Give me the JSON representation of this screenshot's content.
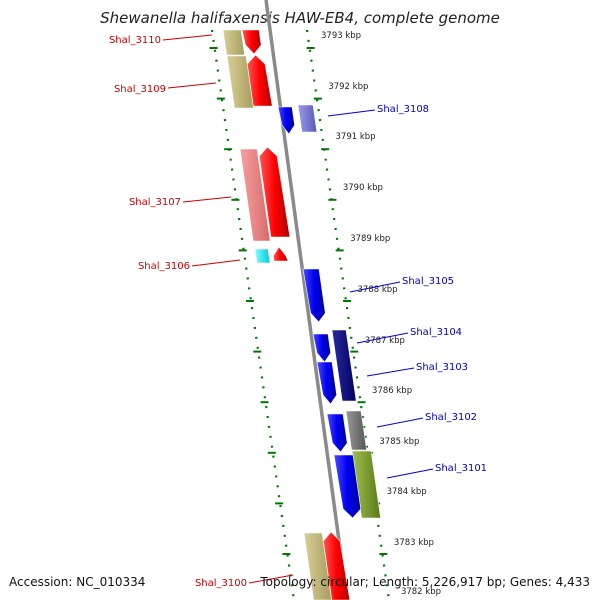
{
  "title": "Shewanella halifaxensis HAW-EB4, complete genome",
  "footer": {
    "accession": "Accession: NC_010334",
    "summary": "Topology: circular; Length: 5,226,917 bp; Genes: 4,433"
  },
  "colors": {
    "plus_label": "#cc0000",
    "minus_label": "#0000cc",
    "tick": "#007700",
    "backbone": "#888888"
  },
  "scale_labels": [
    "3793 kbp",
    "3792 kbp",
    "3791 kbp",
    "3790 kbp",
    "3789 kbp",
    "3788 kbp",
    "3787 kbp",
    "3786 kbp",
    "3785 kbp",
    "3784 kbp",
    "3783 kbp",
    "3782 kbp"
  ],
  "genes": [
    {
      "name": "Shal_3110",
      "strand": "plus"
    },
    {
      "name": "Shal_3109",
      "strand": "plus"
    },
    {
      "name": "Shal_3108",
      "strand": "minus"
    },
    {
      "name": "Shal_3107",
      "strand": "plus"
    },
    {
      "name": "Shal_3106",
      "strand": "plus"
    },
    {
      "name": "Shal_3105",
      "strand": "minus"
    },
    {
      "name": "Shal_3104",
      "strand": "minus"
    },
    {
      "name": "Shal_3103",
      "strand": "minus"
    },
    {
      "name": "Shal_3102",
      "strand": "minus"
    },
    {
      "name": "Shal_3101",
      "strand": "minus"
    },
    {
      "name": "Shal_3100",
      "strand": "plus"
    }
  ]
}
